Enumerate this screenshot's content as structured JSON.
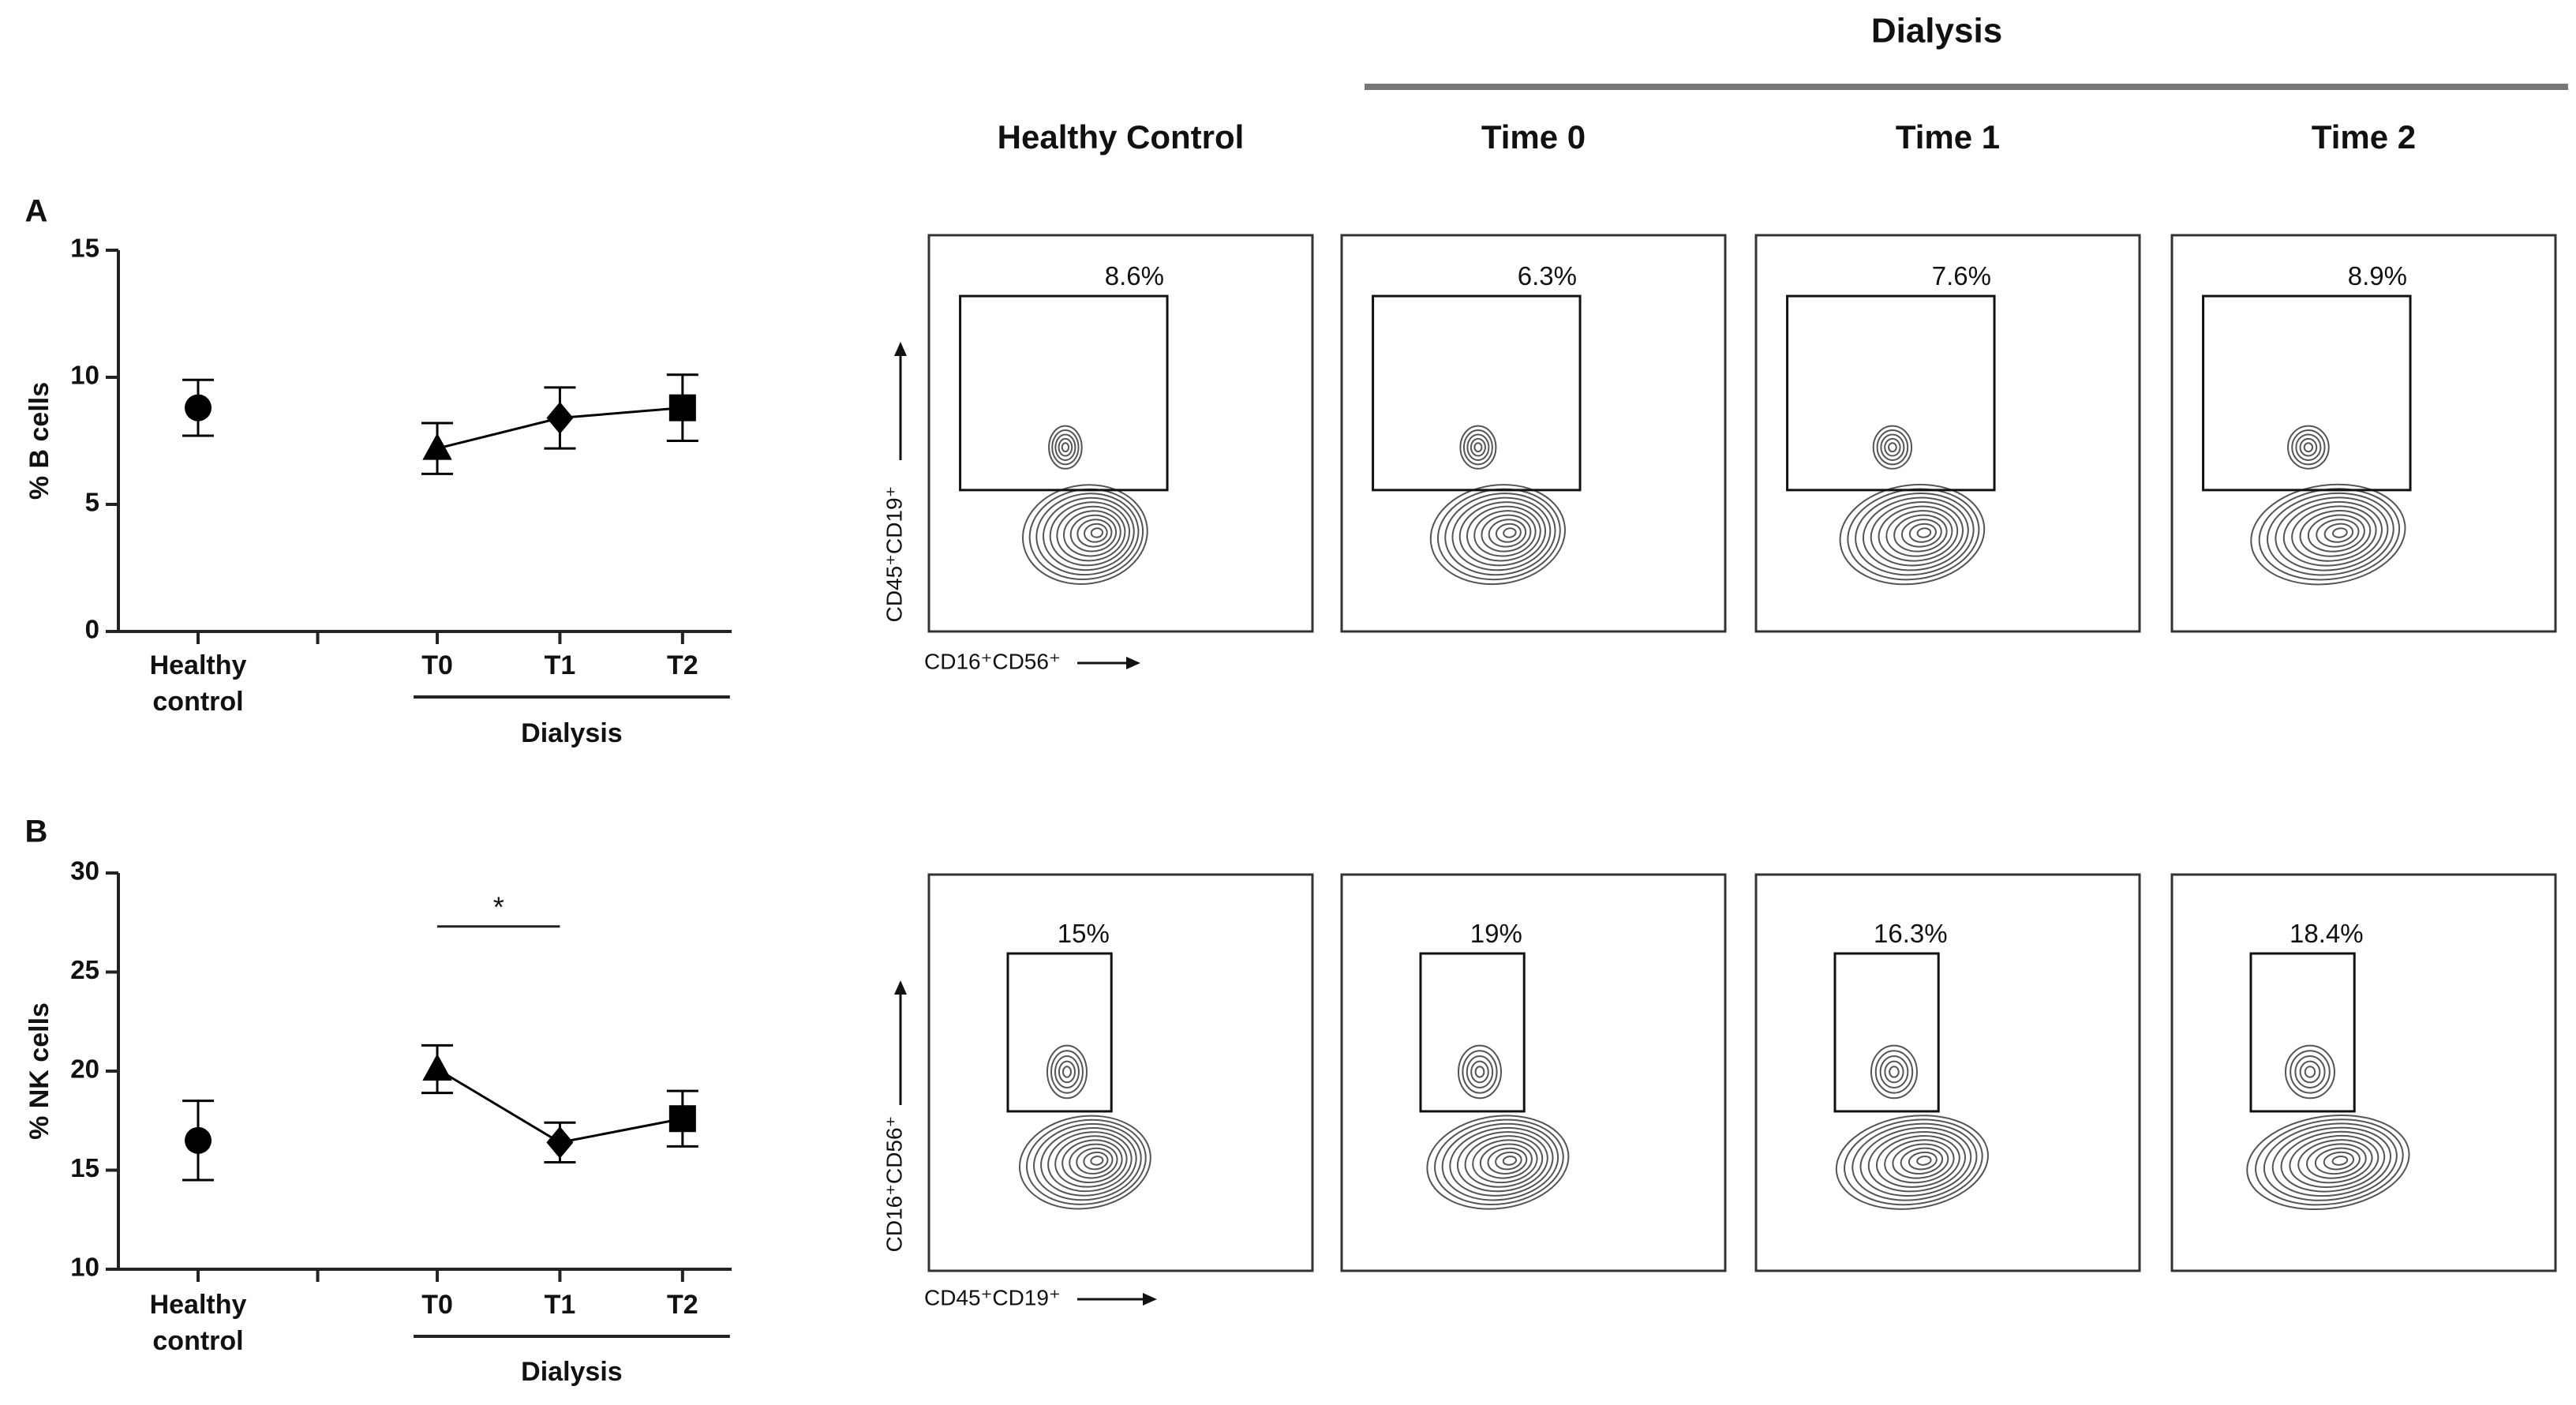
{
  "figure": {
    "dialysis_header": "Dialysis",
    "columns": [
      "Healthy Control",
      "Time 0",
      "Time 1",
      "Time 2"
    ],
    "rows": [
      {
        "y_label": "CD45⁺CD19⁺",
        "x_label": "CD16⁺CD56⁺",
        "gates": [
          "8.6%",
          "6.3%",
          "7.6%",
          "8.9%"
        ]
      },
      {
        "y_label": "CD16⁺CD56⁺",
        "x_label": "CD45⁺CD19⁺",
        "gates": [
          "15%",
          "19%",
          "16.3%",
          "18.4%"
        ]
      }
    ]
  },
  "chart_data": [
    {
      "type": "line",
      "panel": "A",
      "y_label": "% B cells",
      "group_label": "Dialysis",
      "categories": [
        "Healthy control",
        "T0",
        "T1",
        "T2"
      ],
      "markers": [
        "circle",
        "triangle",
        "diamond",
        "square"
      ],
      "color": "#000000",
      "series": [
        {
          "values": [
            8.8,
            null,
            null,
            null
          ],
          "errors": [
            1.1,
            null,
            null,
            null
          ],
          "line": false
        },
        {
          "values": [
            null,
            7.2,
            8.4,
            8.8
          ],
          "errors": [
            null,
            1.0,
            1.2,
            1.3
          ],
          "line": true
        }
      ],
      "ylim": [
        0,
        15
      ],
      "yticks": [
        0,
        5,
        10,
        15
      ]
    },
    {
      "type": "line",
      "panel": "B",
      "y_label": "% NK cells",
      "group_label": "Dialysis",
      "categories": [
        "Healthy control",
        "T0",
        "T1",
        "T2"
      ],
      "markers": [
        "circle",
        "triangle",
        "diamond",
        "square"
      ],
      "color": "#000000",
      "series": [
        {
          "values": [
            16.5,
            null,
            null,
            null
          ],
          "errors": [
            2.0,
            null,
            null,
            null
          ],
          "line": false
        },
        {
          "values": [
            null,
            20.1,
            16.4,
            17.6
          ],
          "errors": [
            null,
            1.2,
            1.0,
            1.4
          ],
          "line": true
        }
      ],
      "annotations": [
        {
          "text": "*",
          "from": "T0",
          "to": "T1",
          "y": 27.3
        }
      ],
      "ylim": [
        10,
        30
      ],
      "yticks": [
        10,
        15,
        20,
        25,
        30
      ]
    }
  ]
}
